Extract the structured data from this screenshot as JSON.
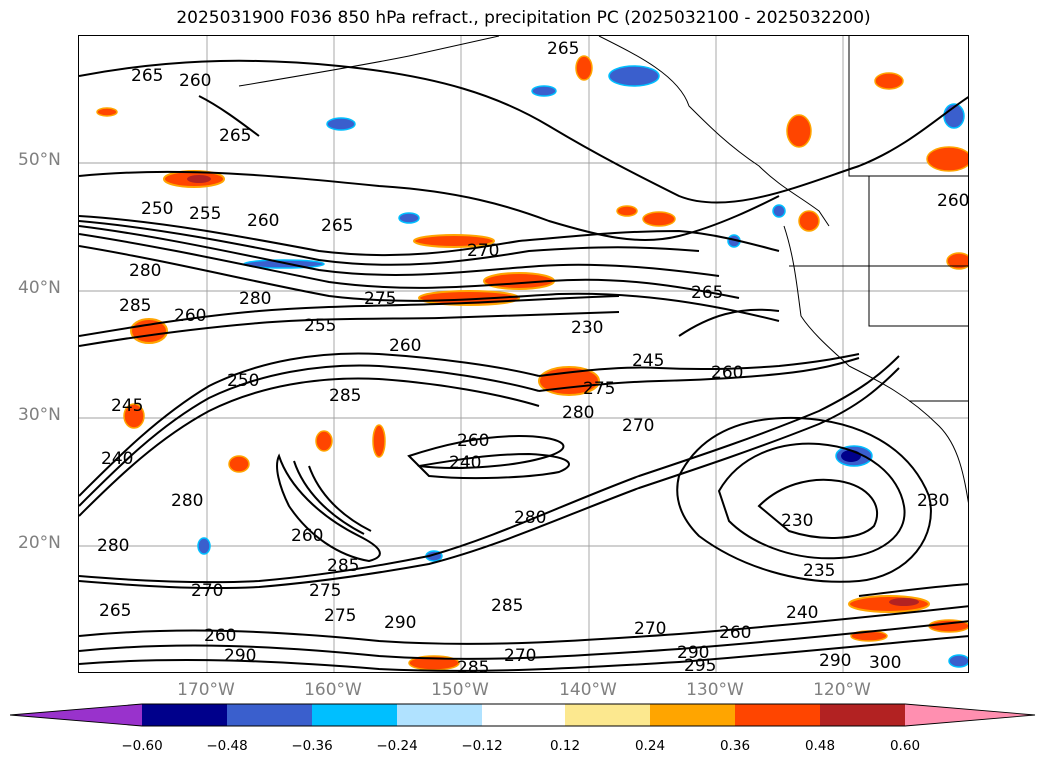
{
  "title": "2025031900 F036 850 hPa refract., precipitation PC (2025032100 - 2025032200)",
  "lat_labels": [
    "50°N",
    "40°N",
    "30°N",
    "20°N"
  ],
  "lon_labels": [
    "170°W",
    "160°W",
    "150°W",
    "140°W",
    "130°W",
    "120°W"
  ],
  "colorbar": {
    "ticks": [
      "−0.60",
      "−0.48",
      "−0.36",
      "−0.24",
      "−0.12",
      "0.12",
      "0.24",
      "0.36",
      "0.48",
      "0.60"
    ],
    "colors": [
      "#9932cc",
      "#00008b",
      "#3a5fcd",
      "#00bfff",
      "#b0e2ff",
      "#ffffff",
      "#fce88f",
      "#ffa500",
      "#ff4500",
      "#b22222",
      "#ff8fb0"
    ]
  },
  "contour_labels": [
    "265",
    "260",
    "265",
    "265",
    "250",
    "255",
    "260",
    "265",
    "270",
    "280",
    "285",
    "260",
    "280",
    "275",
    "255",
    "260",
    "250",
    "245",
    "240",
    "280",
    "285",
    "260",
    "240",
    "260",
    "285",
    "275",
    "280",
    "230",
    "245",
    "260",
    "265",
    "275",
    "280",
    "270",
    "230",
    "235",
    "240",
    "260",
    "270",
    "290",
    "295",
    "290",
    "300",
    "230",
    "280",
    "265",
    "270",
    "285",
    "290",
    "275",
    "260",
    "270",
    "285",
    "290",
    "260"
  ]
}
